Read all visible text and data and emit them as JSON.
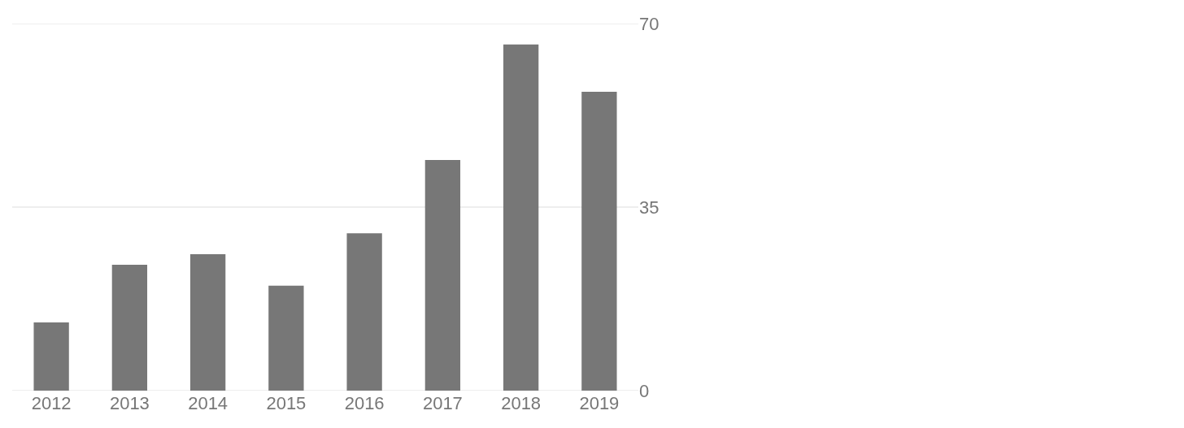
{
  "chart_data": {
    "type": "bar",
    "categories": [
      "2012",
      "2013",
      "2014",
      "2015",
      "2016",
      "2017",
      "2018",
      "2019"
    ],
    "values": [
      13,
      24,
      26,
      20,
      30,
      44,
      66,
      57
    ],
    "color": "#777777",
    "ylim": [
      0,
      70
    ],
    "yticks": [
      0,
      35,
      70
    ],
    "grid": "y"
  }
}
